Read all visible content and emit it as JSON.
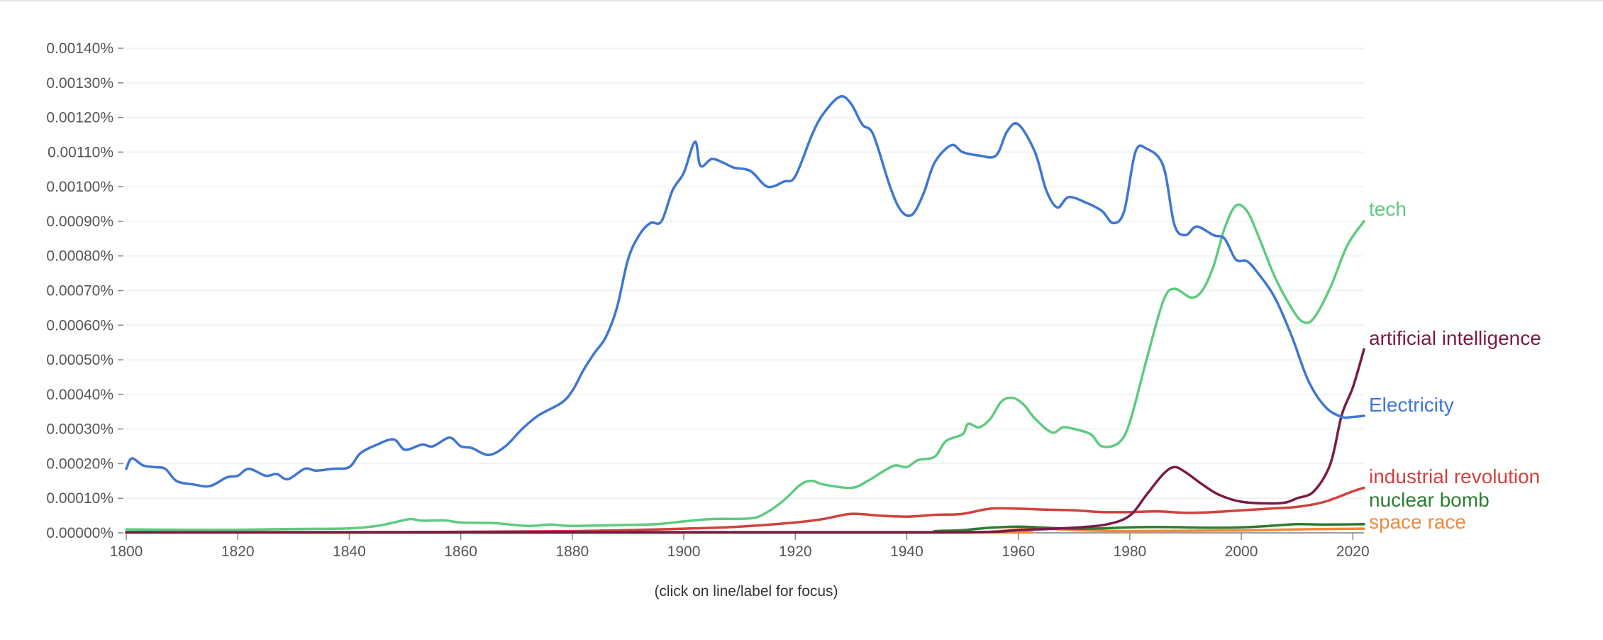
{
  "chart_data": {
    "type": "line",
    "title": "",
    "xlabel": "",
    "ylabel": "",
    "xlim": [
      1800,
      2022
    ],
    "ylim": [
      0,
      0.0014
    ],
    "y_ticks": [
      "0.00000%",
      "0.00010%",
      "0.00020%",
      "0.00030%",
      "0.00040%",
      "0.00050%",
      "0.00060%",
      "0.00070%",
      "0.00080%",
      "0.00090%",
      "0.00100%",
      "0.00110%",
      "0.00120%",
      "0.00130%",
      "0.00140%"
    ],
    "x_ticks": [
      "1800",
      "1820",
      "1840",
      "1860",
      "1880",
      "1900",
      "1920",
      "1940",
      "1960",
      "1980",
      "2000",
      "2020"
    ],
    "grid": true,
    "legend": "end-of-line labels",
    "note": "(click on line/label for focus)",
    "series": [
      {
        "name": "tech",
        "color": "#5ecb80",
        "points": [
          [
            1800,
            1e-05
          ],
          [
            1810,
            9e-06
          ],
          [
            1820,
            9e-06
          ],
          [
            1830,
            1.1e-05
          ],
          [
            1840,
            1.3e-05
          ],
          [
            1845,
            2e-05
          ],
          [
            1848,
            3e-05
          ],
          [
            1851,
            4e-05
          ],
          [
            1853,
            3.5e-05
          ],
          [
            1857,
            3.6e-05
          ],
          [
            1860,
            3e-05
          ],
          [
            1866,
            2.8e-05
          ],
          [
            1872,
            2e-05
          ],
          [
            1876,
            2.4e-05
          ],
          [
            1880,
            2e-05
          ],
          [
            1890,
            2.3e-05
          ],
          [
            1895,
            2.5e-05
          ],
          [
            1900,
            3.3e-05
          ],
          [
            1905,
            4e-05
          ],
          [
            1912,
            4.2e-05
          ],
          [
            1915,
            6e-05
          ],
          [
            1918,
            9.5e-05
          ],
          [
            1921,
            0.00014
          ],
          [
            1923,
            0.00015
          ],
          [
            1925,
            0.00014
          ],
          [
            1930,
            0.00013
          ],
          [
            1933,
            0.00015
          ],
          [
            1936,
            0.00018
          ],
          [
            1938,
            0.000195
          ],
          [
            1940,
            0.00019
          ],
          [
            1942,
            0.00021
          ],
          [
            1945,
            0.00022
          ],
          [
            1947,
            0.000265
          ],
          [
            1950,
            0.000285
          ],
          [
            1951,
            0.000315
          ],
          [
            1953,
            0.000305
          ],
          [
            1955,
            0.00033
          ],
          [
            1957,
            0.00038
          ],
          [
            1959,
            0.00039
          ],
          [
            1961,
            0.00037
          ],
          [
            1963,
            0.00033
          ],
          [
            1966,
            0.00029
          ],
          [
            1968,
            0.000305
          ],
          [
            1970,
            0.0003
          ],
          [
            1973,
            0.000285
          ],
          [
            1975,
            0.00025
          ],
          [
            1978,
            0.00026
          ],
          [
            1980,
            0.00032
          ],
          [
            1983,
            0.0005
          ],
          [
            1986,
            0.00067
          ],
          [
            1988,
            0.000705
          ],
          [
            1991,
            0.00068
          ],
          [
            1993,
            0.0007
          ],
          [
            1995,
            0.00077
          ],
          [
            1997,
            0.00088
          ],
          [
            1999,
            0.000945
          ],
          [
            2001,
            0.00093
          ],
          [
            2003,
            0.00086
          ],
          [
            2006,
            0.00074
          ],
          [
            2009,
            0.00065
          ],
          [
            2011,
            0.00061
          ],
          [
            2013,
            0.00062
          ],
          [
            2016,
            0.00071
          ],
          [
            2019,
            0.00083
          ],
          [
            2022,
            0.0009
          ]
        ]
      },
      {
        "name": "artificial intelligence",
        "color": "#7a1b47",
        "points": [
          [
            1800,
            2e-06
          ],
          [
            1900,
            2e-06
          ],
          [
            1950,
            2e-06
          ],
          [
            1960,
            8e-06
          ],
          [
            1970,
            1.5e-05
          ],
          [
            1976,
            2.5e-05
          ],
          [
            1980,
            5e-05
          ],
          [
            1983,
            0.00011
          ],
          [
            1986,
            0.00017
          ],
          [
            1988,
            0.00019
          ],
          [
            1990,
            0.000175
          ],
          [
            1993,
            0.00014
          ],
          [
            1996,
            0.00011
          ],
          [
            2000,
            9e-05
          ],
          [
            2005,
            8.5e-05
          ],
          [
            2008,
            8.8e-05
          ],
          [
            2010,
            0.0001
          ],
          [
            2013,
            0.00012
          ],
          [
            2016,
            0.0002
          ],
          [
            2018,
            0.00034
          ],
          [
            2020,
            0.00042
          ],
          [
            2022,
            0.00053
          ]
        ]
      },
      {
        "name": "Electricity",
        "color": "#3f76d1",
        "points": [
          [
            1800,
            0.000185
          ],
          [
            1801,
            0.000215
          ],
          [
            1803,
            0.000195
          ],
          [
            1805,
            0.00019
          ],
          [
            1807,
            0.000185
          ],
          [
            1809,
            0.00015
          ],
          [
            1812,
            0.00014
          ],
          [
            1815,
            0.000135
          ],
          [
            1818,
            0.00016
          ],
          [
            1820,
            0.000165
          ],
          [
            1822,
            0.000185
          ],
          [
            1825,
            0.000165
          ],
          [
            1827,
            0.00017
          ],
          [
            1829,
            0.000155
          ],
          [
            1832,
            0.000185
          ],
          [
            1834,
            0.00018
          ],
          [
            1837,
            0.000185
          ],
          [
            1840,
            0.00019
          ],
          [
            1842,
            0.00023
          ],
          [
            1845,
            0.000255
          ],
          [
            1848,
            0.00027
          ],
          [
            1850,
            0.00024
          ],
          [
            1853,
            0.000255
          ],
          [
            1855,
            0.00025
          ],
          [
            1858,
            0.000275
          ],
          [
            1860,
            0.00025
          ],
          [
            1862,
            0.000245
          ],
          [
            1865,
            0.000225
          ],
          [
            1868,
            0.00025
          ],
          [
            1871,
            0.0003
          ],
          [
            1874,
            0.00034
          ],
          [
            1878,
            0.000375
          ],
          [
            1880,
            0.00041
          ],
          [
            1882,
            0.00047
          ],
          [
            1884,
            0.00052
          ],
          [
            1886,
            0.000565
          ],
          [
            1888,
            0.00065
          ],
          [
            1890,
            0.00079
          ],
          [
            1892,
            0.00086
          ],
          [
            1894,
            0.000895
          ],
          [
            1896,
            0.0009
          ],
          [
            1898,
            0.00099
          ],
          [
            1900,
            0.00104
          ],
          [
            1902,
            0.00113
          ],
          [
            1903,
            0.00106
          ],
          [
            1905,
            0.00108
          ],
          [
            1907,
            0.00107
          ],
          [
            1909,
            0.001055
          ],
          [
            1912,
            0.001045
          ],
          [
            1915,
            0.001
          ],
          [
            1918,
            0.001015
          ],
          [
            1920,
            0.00103
          ],
          [
            1923,
            0.00115
          ],
          [
            1925,
            0.00121
          ],
          [
            1928,
            0.00126
          ],
          [
            1930,
            0.00124
          ],
          [
            1932,
            0.00118
          ],
          [
            1934,
            0.00115
          ],
          [
            1937,
            0.001
          ],
          [
            1939,
            0.00093
          ],
          [
            1941,
            0.00092
          ],
          [
            1943,
            0.00098
          ],
          [
            1945,
            0.00107
          ],
          [
            1948,
            0.00112
          ],
          [
            1950,
            0.0011
          ],
          [
            1953,
            0.00109
          ],
          [
            1956,
            0.00109
          ],
          [
            1958,
            0.00116
          ],
          [
            1960,
            0.00118
          ],
          [
            1963,
            0.0011
          ],
          [
            1965,
            0.00099
          ],
          [
            1967,
            0.00094
          ],
          [
            1969,
            0.00097
          ],
          [
            1972,
            0.000955
          ],
          [
            1975,
            0.00093
          ],
          [
            1977,
            0.000895
          ],
          [
            1979,
            0.00093
          ],
          [
            1981,
            0.0011
          ],
          [
            1983,
            0.00111
          ],
          [
            1986,
            0.00106
          ],
          [
            1988,
            0.00089
          ],
          [
            1990,
            0.00086
          ],
          [
            1992,
            0.000885
          ],
          [
            1995,
            0.00086
          ],
          [
            1997,
            0.00085
          ],
          [
            1999,
            0.00079
          ],
          [
            2001,
            0.000785
          ],
          [
            2003,
            0.00075
          ],
          [
            2006,
            0.00068
          ],
          [
            2009,
            0.00057
          ],
          [
            2012,
            0.00044
          ],
          [
            2015,
            0.000365
          ],
          [
            2018,
            0.000335
          ],
          [
            2020,
            0.000335
          ],
          [
            2022,
            0.000338
          ]
        ]
      },
      {
        "name": "industrial revolution",
        "color": "#d0423f",
        "points": [
          [
            1800,
            1e-06
          ],
          [
            1850,
            2e-06
          ],
          [
            1880,
            5e-06
          ],
          [
            1900,
            1.2e-05
          ],
          [
            1910,
            1.8e-05
          ],
          [
            1920,
            3e-05
          ],
          [
            1925,
            4e-05
          ],
          [
            1930,
            5.5e-05
          ],
          [
            1935,
            5e-05
          ],
          [
            1940,
            4.7e-05
          ],
          [
            1945,
            5.2e-05
          ],
          [
            1950,
            5.5e-05
          ],
          [
            1955,
            7e-05
          ],
          [
            1960,
            7e-05
          ],
          [
            1965,
            6.7e-05
          ],
          [
            1970,
            6.5e-05
          ],
          [
            1975,
            6e-05
          ],
          [
            1980,
            6e-05
          ],
          [
            1985,
            6.2e-05
          ],
          [
            1990,
            5.8e-05
          ],
          [
            1995,
            6e-05
          ],
          [
            2000,
            6.5e-05
          ],
          [
            2005,
            7e-05
          ],
          [
            2010,
            7.5e-05
          ],
          [
            2015,
            9e-05
          ],
          [
            2020,
            0.00012
          ],
          [
            2022,
            0.00013
          ]
        ]
      },
      {
        "name": "nuclear bomb",
        "color": "#2e7d32",
        "points": [
          [
            1800,
            1e-06
          ],
          [
            1940,
            1e-06
          ],
          [
            1945,
            5e-06
          ],
          [
            1950,
            8e-06
          ],
          [
            1955,
            1.5e-05
          ],
          [
            1960,
            1.8e-05
          ],
          [
            1965,
            1.5e-05
          ],
          [
            1970,
            1.2e-05
          ],
          [
            1975,
            1.3e-05
          ],
          [
            1980,
            1.6e-05
          ],
          [
            1985,
            1.7e-05
          ],
          [
            1990,
            1.6e-05
          ],
          [
            1995,
            1.5e-05
          ],
          [
            2000,
            1.6e-05
          ],
          [
            2005,
            2e-05
          ],
          [
            2010,
            2.5e-05
          ],
          [
            2015,
            2.4e-05
          ],
          [
            2022,
            2.5e-05
          ]
        ]
      },
      {
        "name": "space race",
        "color": "#f08a3c",
        "points": [
          [
            1800,
            1e-06
          ],
          [
            1950,
            1e-06
          ],
          [
            1955,
            3e-06
          ],
          [
            1960,
            1e-05
          ],
          [
            1965,
            1.2e-05
          ],
          [
            1970,
            8e-06
          ],
          [
            1975,
            6e-06
          ],
          [
            1980,
            5e-06
          ],
          [
            1990,
            6e-06
          ],
          [
            2000,
            7e-06
          ],
          [
            2010,
            1e-05
          ],
          [
            2022,
            1.2e-05
          ]
        ]
      }
    ]
  }
}
